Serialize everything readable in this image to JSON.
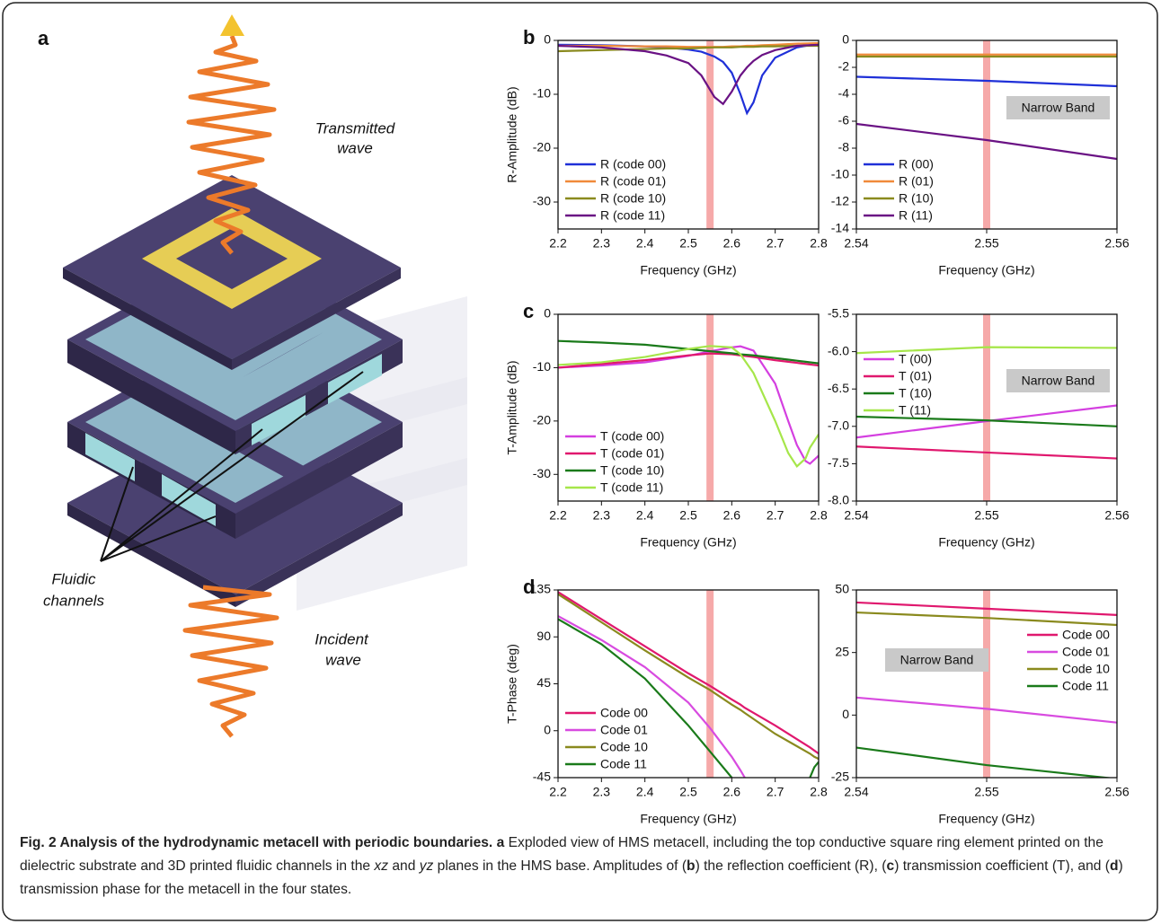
{
  "panel_labels": [
    "a",
    "b",
    "c",
    "d"
  ],
  "illustration": {
    "transmitted": [
      "Transmitted",
      "wave"
    ],
    "channels": [
      "Fluidic",
      "channels"
    ],
    "incident": [
      "Incident",
      "wave"
    ]
  },
  "caption": {
    "title": "Fig. 2 Analysis of the hydrodynamic metacell with periodic boundaries.",
    "segments": [
      "a",
      "Exploded view of HMS metacell, including the top conductive square ring element printed on the dielectric substrate and 3D printed fluidic channels in the",
      "xz",
      "and",
      "yz",
      "planes in the HMS base. Amplitudes of (",
      "b",
      ") the reflection coefficient (R), (",
      "c",
      ") transmission coefficient (T), and (",
      "d",
      ") transmission phase for the metacell in the four states."
    ]
  },
  "chart_data": [
    {
      "type": "line",
      "xlabel": "Frequency (GHz)",
      "ylabel": "R-Amplitude (dB)",
      "xlim": [
        2.2,
        2.8
      ],
      "xticks": [
        2.2,
        2.3,
        2.4,
        2.5,
        2.6,
        2.7,
        2.8
      ],
      "ylim": [
        -35,
        0
      ],
      "yticks": [
        0,
        -10,
        -20,
        -30
      ],
      "highlight_x": 2.55,
      "highlight_color": "#f59a9a",
      "legend": "lower left",
      "x": [
        2.2,
        2.3,
        2.4,
        2.45,
        2.5,
        2.53,
        2.56,
        2.58,
        2.6,
        2.62,
        2.635,
        2.65,
        2.67,
        2.7,
        2.75,
        2.8
      ],
      "series": [
        {
          "name": "R (code 00)",
          "color": "#1f30d8",
          "values": [
            -0.8,
            -0.9,
            -1.1,
            -1.3,
            -1.7,
            -2.1,
            -3.0,
            -4.0,
            -6.0,
            -10.0,
            -13.5,
            -11.5,
            -6.5,
            -3.2,
            -1.3,
            -0.6
          ]
        },
        {
          "name": "R (code 01)",
          "color": "#f08a3a",
          "values": [
            -1.0,
            -1.0,
            -1.1,
            -1.1,
            -1.2,
            -1.2,
            -1.2,
            -1.2,
            -1.1,
            -1.1,
            -1.0,
            -1.0,
            -0.9,
            -0.8,
            -0.6,
            -0.5
          ]
        },
        {
          "name": "R (code 10)",
          "color": "#8a8a1e",
          "values": [
            -2.0,
            -1.8,
            -1.6,
            -1.5,
            -1.5,
            -1.4,
            -1.3,
            -1.3,
            -1.3,
            -1.2,
            -1.2,
            -1.2,
            -1.1,
            -1.1,
            -1.0,
            -1.0
          ]
        },
        {
          "name": "R (code 11)",
          "color": "#6a1284",
          "values": [
            -1.0,
            -1.3,
            -2.0,
            -2.8,
            -4.2,
            -6.5,
            -10.5,
            -11.8,
            -9.5,
            -6.5,
            -5.0,
            -3.8,
            -2.7,
            -1.8,
            -1.0,
            -0.8
          ]
        }
      ]
    },
    {
      "type": "line",
      "xlabel": "Frequency (GHz)",
      "xlim": [
        2.54,
        2.56
      ],
      "xticks": [
        2.54,
        2.55,
        2.56
      ],
      "ylim": [
        -14,
        0
      ],
      "yticks": [
        0,
        -2,
        -4,
        -6,
        -8,
        -10,
        -12,
        -14
      ],
      "highlight_x": 2.55,
      "highlight_color": "#f59a9a",
      "legend": "lower left",
      "annotation": "Narrow Band",
      "x": [
        2.54,
        2.55,
        2.56
      ],
      "series": [
        {
          "name": "R (00)",
          "color": "#1f30d8",
          "values": [
            -2.7,
            -3.0,
            -3.4
          ]
        },
        {
          "name": "R (01)",
          "color": "#f08a3a",
          "values": [
            -1.05,
            -1.05,
            -1.05
          ]
        },
        {
          "name": "R (10)",
          "color": "#8a8a1e",
          "values": [
            -1.2,
            -1.2,
            -1.2
          ]
        },
        {
          "name": "R (11)",
          "color": "#6a1284",
          "values": [
            -6.2,
            -7.4,
            -8.8
          ]
        }
      ]
    },
    {
      "type": "line",
      "xlabel": "Frequency (GHz)",
      "ylabel": "T-Amplitude (dB)",
      "xlim": [
        2.2,
        2.8
      ],
      "xticks": [
        2.2,
        2.3,
        2.4,
        2.5,
        2.6,
        2.7,
        2.8
      ],
      "ylim": [
        -35,
        0
      ],
      "yticks": [
        0,
        -10,
        -20,
        -30
      ],
      "highlight_x": 2.55,
      "highlight_color": "#f59a9a",
      "legend": "lower left",
      "x": [
        2.2,
        2.3,
        2.4,
        2.5,
        2.55,
        2.6,
        2.62,
        2.65,
        2.7,
        2.73,
        2.75,
        2.77,
        2.78,
        2.8
      ],
      "series": [
        {
          "name": "T (code 00)",
          "color": "#d43fe0",
          "values": [
            -10,
            -9.6,
            -9,
            -7.8,
            -6.93,
            -6.2,
            -6,
            -6.8,
            -13,
            -20,
            -24.5,
            -27.5,
            -28,
            -26.5
          ]
        },
        {
          "name": "T (code 01)",
          "color": "#e0186e",
          "values": [
            -10,
            -9.3,
            -8.6,
            -7.7,
            -7.35,
            -7.5,
            -7.7,
            -8.0,
            -8.6,
            -8.9,
            -9.1,
            -9.3,
            -9.4,
            -9.6
          ]
        },
        {
          "name": "T (code 10)",
          "color": "#1a7a1a",
          "values": [
            -5,
            -5.3,
            -5.7,
            -6.5,
            -6.92,
            -7.3,
            -7.5,
            -7.7,
            -8.2,
            -8.5,
            -8.7,
            -8.9,
            -9,
            -9.2
          ]
        },
        {
          "name": "T (code 11)",
          "color": "#a6e64a",
          "values": [
            -9.5,
            -9,
            -8,
            -6.5,
            -5.94,
            -6.2,
            -7.5,
            -11,
            -20,
            -26,
            -28.5,
            -27,
            -25,
            -22.5
          ]
        }
      ]
    },
    {
      "type": "line",
      "xlabel": "Frequency (GHz)",
      "xlim": [
        2.54,
        2.56
      ],
      "xticks": [
        2.54,
        2.55,
        2.56
      ],
      "ylim": [
        -8,
        -5.5
      ],
      "yticks": [
        -5.5,
        {
          "value": -6,
          "label": "-6.0"
        },
        -6.5,
        {
          "value": -7,
          "label": "-7.0"
        },
        -7.5,
        {
          "value": -8,
          "label": "-8.0"
        }
      ],
      "highlight_x": 2.55,
      "highlight_color": "#f59a9a",
      "legend": "upper left",
      "annotation": "Narrow Band",
      "x": [
        2.54,
        2.55,
        2.56
      ],
      "series": [
        {
          "name": "T (00)",
          "color": "#d43fe0",
          "values": [
            -7.15,
            -6.93,
            -6.72
          ]
        },
        {
          "name": "T (01)",
          "color": "#e0186e",
          "values": [
            -7.27,
            -7.35,
            -7.43
          ]
        },
        {
          "name": "T (10)",
          "color": "#1a7a1a",
          "values": [
            -6.87,
            -6.92,
            -7.0
          ]
        },
        {
          "name": "T (11)",
          "color": "#a6e64a",
          "values": [
            -6.02,
            -5.94,
            -5.95
          ]
        }
      ]
    },
    {
      "type": "line",
      "xlabel": "Frequency (GHz)",
      "ylabel": "T-Phase (deg)",
      "xlim": [
        2.2,
        2.8
      ],
      "xticks": [
        2.2,
        2.3,
        2.4,
        2.5,
        2.6,
        2.7,
        2.8
      ],
      "ylim": [
        -45,
        135
      ],
      "yticks": [
        135,
        90,
        45,
        0,
        -45
      ],
      "highlight_x": 2.55,
      "highlight_color": "#f59a9a",
      "legend": "lower left",
      "x": [
        2.2,
        2.3,
        2.4,
        2.5,
        2.55,
        2.6,
        2.62,
        2.63,
        2.7,
        2.78,
        2.79,
        2.8
      ],
      "series": [
        {
          "name": "Code 00",
          "color": "#e0186e",
          "values": [
            133,
            107,
            81,
            55,
            43,
            30,
            25,
            22,
            5,
            -16,
            -19,
            -22
          ]
        },
        {
          "name": "Code 01",
          "color": "#d84be0",
          "values": [
            110,
            87,
            61,
            27,
            2.5,
            -25,
            -38,
            -45,
            null,
            null,
            null,
            null
          ]
        },
        {
          "name": "Code 10",
          "color": "#8a8a1e",
          "values": [
            131,
            104,
            77,
            51,
            39,
            25,
            20,
            17,
            -3,
            -22,
            -25,
            -27
          ]
        },
        {
          "name": "Code 11",
          "color": "#1a7a1a",
          "values": [
            107,
            83,
            50,
            5,
            -20,
            -45,
            null,
            null,
            null,
            -45,
            -35,
            -30
          ]
        }
      ]
    },
    {
      "type": "line",
      "xlabel": "Frequency (GHz)",
      "xlim": [
        2.54,
        2.56
      ],
      "xticks": [
        2.54,
        2.55,
        2.56
      ],
      "ylim": [
        -25,
        50
      ],
      "yticks": [
        50,
        25,
        0,
        -25
      ],
      "highlight_x": 2.55,
      "highlight_color": "#f59a9a",
      "legend": "upper right",
      "annotation": "Narrow Band",
      "x": [
        2.54,
        2.55,
        2.56
      ],
      "series": [
        {
          "name": "Code 00",
          "color": "#e0186e",
          "values": [
            45,
            42.5,
            40
          ]
        },
        {
          "name": "Code 01",
          "color": "#d84be0",
          "values": [
            7,
            2.5,
            -3
          ]
        },
        {
          "name": "Code 10",
          "color": "#8a8a1e",
          "values": [
            41,
            38.8,
            36
          ]
        },
        {
          "name": "Code 11",
          "color": "#1a7a1a",
          "values": [
            -13,
            -20,
            -25.5
          ]
        }
      ]
    }
  ]
}
